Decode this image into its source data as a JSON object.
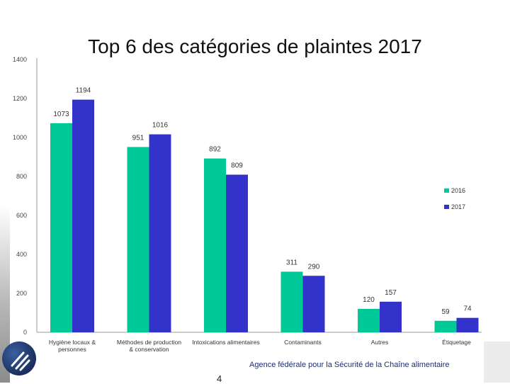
{
  "slide": {
    "title": "Top 6 des catégories de plaintes 2017",
    "footer_agency": "Agence fédérale pour la Sécurité de la Chaîne alimentaire",
    "page_number": "4"
  },
  "chart_data": {
    "type": "bar",
    "title": "Top 6 des catégories de plaintes 2017",
    "xlabel": "",
    "ylabel": "",
    "ylim": [
      0,
      1400
    ],
    "yticks": [
      0,
      200,
      400,
      600,
      800,
      1000,
      1200,
      1400
    ],
    "grid": false,
    "legend_position": "right",
    "categories": [
      [
        "Hygiène locaux &",
        "personnes"
      ],
      [
        "Méthodes de production",
        "& conservation"
      ],
      [
        "Intoxications alimentaires"
      ],
      [
        "Contaminants"
      ],
      [
        "Autres"
      ],
      [
        "Étiquetage"
      ]
    ],
    "series": [
      {
        "name": "2016",
        "color": "#00c896",
        "values": [
          1073,
          951,
          892,
          311,
          120,
          59
        ]
      },
      {
        "name": "2017",
        "color": "#3333cc",
        "values": [
          1194,
          1016,
          809,
          290,
          157,
          74
        ]
      }
    ]
  }
}
